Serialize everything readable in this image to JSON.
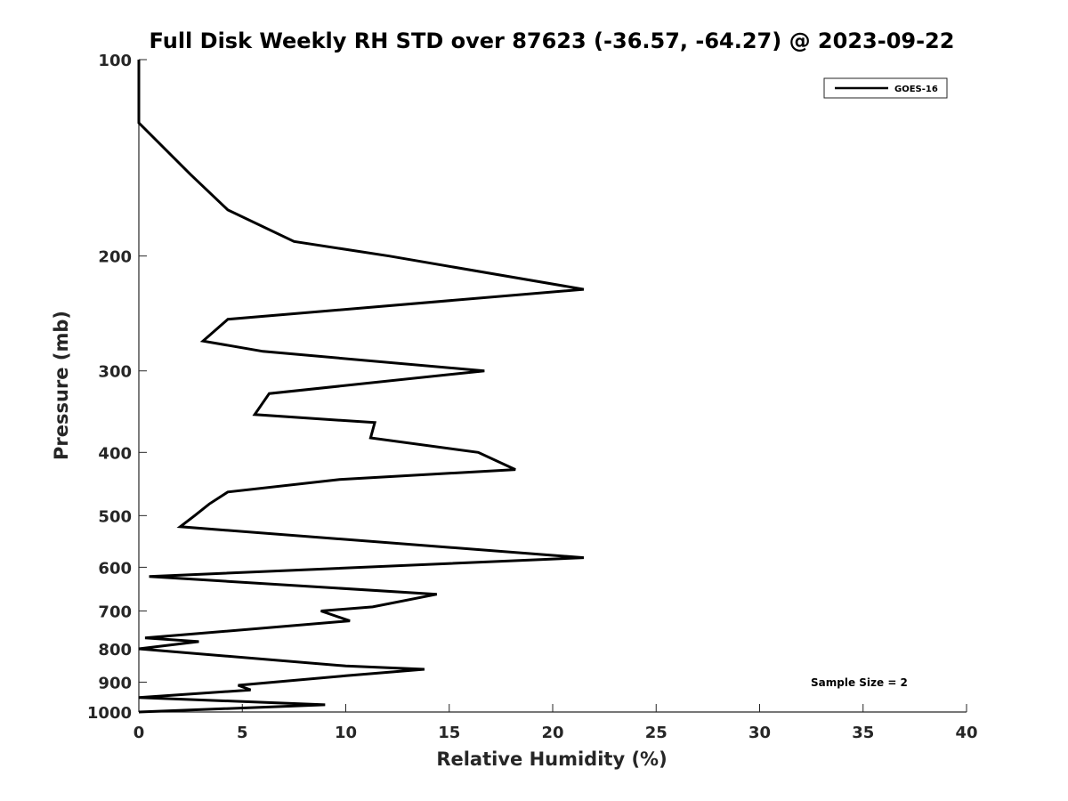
{
  "chart_data": {
    "type": "line",
    "title": "Full Disk Weekly RH STD over 87623 (-36.57, -64.27) @ 2023-09-22",
    "xlabel": "Relative Humidity (%)",
    "ylabel": "Pressure (mb)",
    "xlim": [
      0,
      40
    ],
    "ylim": [
      100,
      1000
    ],
    "y_scale": "log",
    "y_reversed": true,
    "x_ticks": [
      0,
      5,
      10,
      15,
      20,
      25,
      30,
      35,
      40
    ],
    "x_tick_labels": [
      "0",
      "5",
      "10",
      "15",
      "20",
      "25",
      "30",
      "35",
      "40"
    ],
    "y_ticks": [
      100,
      200,
      300,
      400,
      500,
      600,
      700,
      800,
      900,
      1000
    ],
    "y_tick_labels": [
      "100",
      "200",
      "300",
      "400",
      "500",
      "600",
      "700",
      "800",
      "900",
      "1000"
    ],
    "grid": false,
    "legend": {
      "location": "top-right",
      "entries": [
        "GOES-16"
      ]
    },
    "annotation": "Sample Size = 2",
    "series": [
      {
        "name": "GOES-16",
        "color": "#000000",
        "points": [
          [
            0.0,
            100
          ],
          [
            0.0,
            125
          ],
          [
            2.5,
            150
          ],
          [
            4.3,
            170
          ],
          [
            7.5,
            190
          ],
          [
            12.1,
            200
          ],
          [
            21.5,
            225
          ],
          [
            4.3,
            250
          ],
          [
            3.1,
            270
          ],
          [
            6.0,
            280
          ],
          [
            16.7,
            300
          ],
          [
            6.3,
            325
          ],
          [
            5.6,
            350
          ],
          [
            11.4,
            360
          ],
          [
            11.2,
            380
          ],
          [
            16.4,
            400
          ],
          [
            18.2,
            425
          ],
          [
            9.7,
            440
          ],
          [
            4.3,
            460
          ],
          [
            3.4,
            480
          ],
          [
            2.7,
            500
          ],
          [
            2.0,
            520
          ],
          [
            21.5,
            580
          ],
          [
            0.5,
            620
          ],
          [
            14.4,
            660
          ],
          [
            11.3,
            690
          ],
          [
            8.8,
            700
          ],
          [
            10.2,
            725
          ],
          [
            0.3,
            770
          ],
          [
            2.9,
            780
          ],
          [
            0.0,
            800
          ],
          [
            10.0,
            850
          ],
          [
            13.8,
            860
          ],
          [
            10.0,
            880
          ],
          [
            4.8,
            910
          ],
          [
            5.4,
            925
          ],
          [
            0.0,
            950
          ],
          [
            9.0,
            975
          ],
          [
            0.0,
            1000
          ]
        ]
      }
    ]
  }
}
